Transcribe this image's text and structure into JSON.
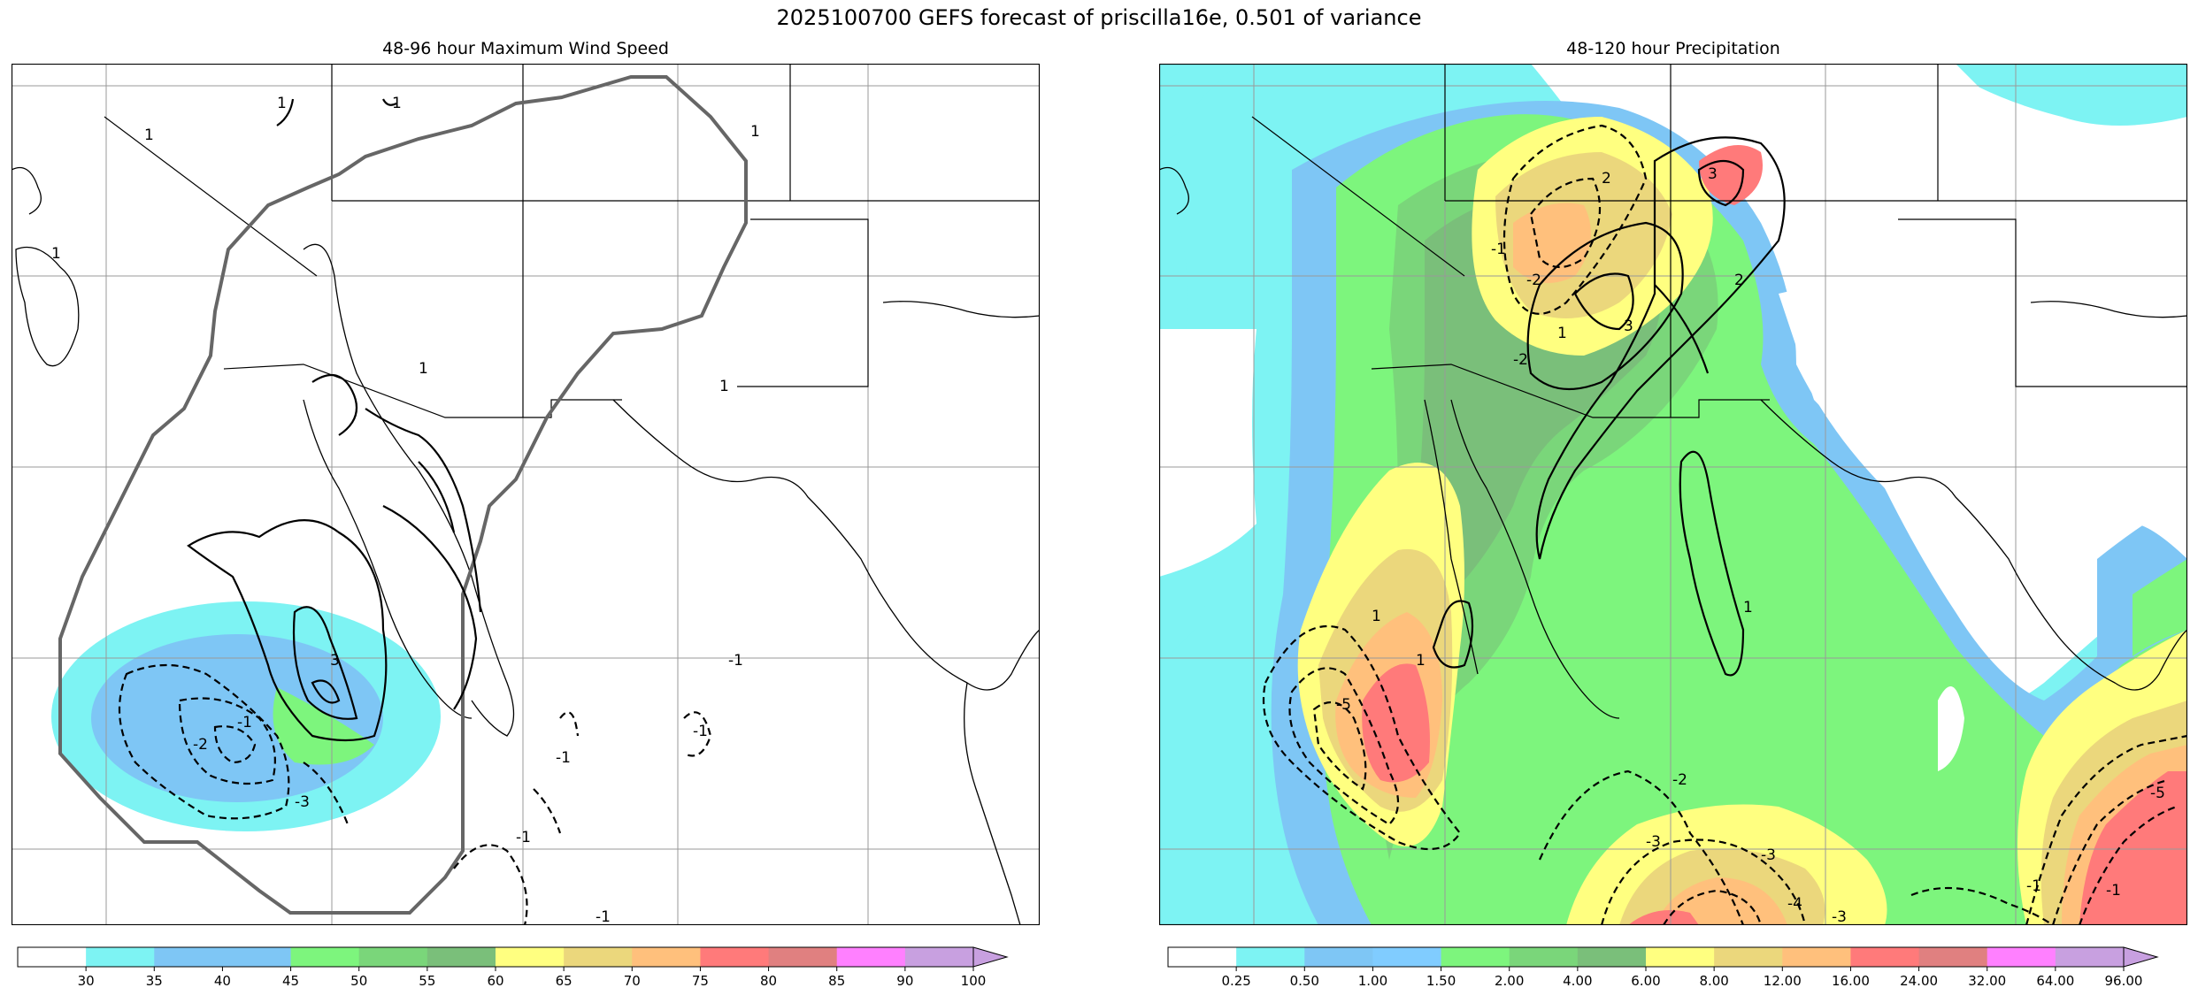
{
  "figure": {
    "suptitle": "2025100700 GEFS forecast of priscilla16e, 0.501 of variance"
  },
  "panels": {
    "left": {
      "title": "48-96 hour Maximum Wind Speed",
      "contour_labels": [
        "1",
        "1",
        "1",
        "1",
        "1",
        "1",
        "1",
        "3",
        "-1",
        "-1",
        "-1",
        "-1",
        "-2",
        "-3",
        "-1",
        "-1"
      ]
    },
    "right": {
      "title": "48-120 hour Precipitation",
      "contour_labels": [
        "2",
        "3",
        "2",
        "3",
        "-2",
        "-1",
        "-2",
        "1",
        "1",
        "1",
        "1",
        "-5",
        "-2",
        "-3",
        "-3",
        "-4",
        "-3",
        "-5",
        "-1",
        "-1"
      ]
    }
  },
  "chart_data": [
    {
      "type": "heatmap",
      "title": "48-96 hour Maximum Wind Speed",
      "colorbar": {
        "ticks": [
          "30",
          "35",
          "40",
          "45",
          "50",
          "55",
          "60",
          "65",
          "70",
          "75",
          "80",
          "85",
          "90",
          "100"
        ],
        "colors": [
          "#ffffff",
          "#7df3f3",
          "#7ec6f5",
          "#7ec6f5",
          "#7df57d",
          "#7ad67a",
          "#7abf7a",
          "#ffff80",
          "#ebd77c",
          "#ffc07c",
          "#ff7a7a",
          "#e08080",
          "#ff80ff",
          "#c8a0e0"
        ],
        "extend": "max"
      }
    },
    {
      "type": "heatmap",
      "title": "48-120 hour Precipitation",
      "colorbar": {
        "ticks": [
          "0.25",
          "0.50",
          "1.00",
          "1.50",
          "2.00",
          "4.00",
          "6.00",
          "8.00",
          "12.00",
          "16.00",
          "24.00",
          "32.00",
          "64.00",
          "96.00"
        ],
        "colors": [
          "#ffffff",
          "#7df3f3",
          "#7ec6f5",
          "#80ccff",
          "#7df57d",
          "#7ad67a",
          "#7abf7a",
          "#ffff80",
          "#ebd77c",
          "#ffc07c",
          "#ff7a7a",
          "#e08080",
          "#ff80ff",
          "#c8a0e0"
        ],
        "extend": "max"
      }
    }
  ],
  "colors": {
    "grid": "#999999",
    "coast": "#000000",
    "cone": "#666666"
  }
}
